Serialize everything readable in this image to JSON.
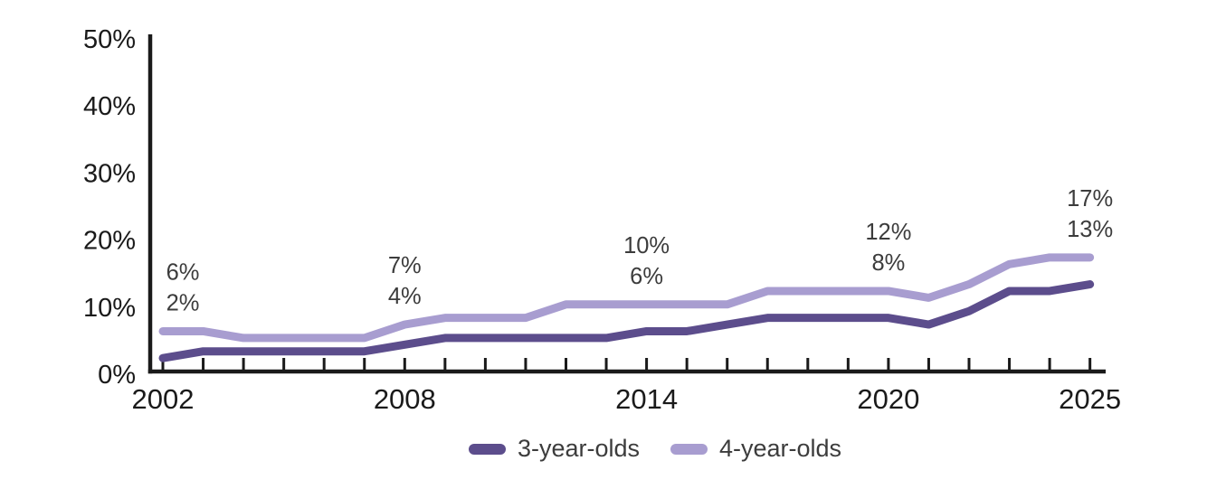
{
  "chart_data": {
    "type": "line",
    "x": [
      2002,
      2003,
      2004,
      2005,
      2006,
      2007,
      2008,
      2009,
      2010,
      2011,
      2012,
      2013,
      2014,
      2015,
      2016,
      2017,
      2018,
      2019,
      2020,
      2021,
      2022,
      2023,
      2024,
      2025
    ],
    "series": [
      {
        "name": "3-year-olds",
        "color": "#5C4D8C",
        "values": [
          2,
          3,
          3,
          3,
          3,
          3,
          4,
          5,
          5,
          5,
          5,
          5,
          6,
          6,
          7,
          8,
          8,
          8,
          8,
          7,
          9,
          12,
          12,
          13
        ]
      },
      {
        "name": "4-year-olds",
        "color": "#A89DD0",
        "values": [
          6,
          6,
          5,
          5,
          5,
          5,
          7,
          8,
          8,
          8,
          10,
          10,
          10,
          10,
          10,
          12,
          12,
          12,
          12,
          11,
          13,
          16,
          17,
          17
        ]
      }
    ],
    "ylim": [
      0,
      50
    ],
    "y_ticks": [
      {
        "value": 0,
        "label": "0%"
      },
      {
        "value": 10,
        "label": "10%"
      },
      {
        "value": 20,
        "label": "20%"
      },
      {
        "value": 30,
        "label": "30%"
      },
      {
        "value": 40,
        "label": "40%"
      },
      {
        "value": 50,
        "label": "50%"
      }
    ],
    "x_tick_labels": [
      {
        "value": 2002,
        "label": "2002"
      },
      {
        "value": 2008,
        "label": "2008"
      },
      {
        "value": 2014,
        "label": "2014"
      },
      {
        "value": 2020,
        "label": "2020"
      },
      {
        "value": 2025,
        "label": "2025"
      }
    ],
    "minor_x_ticks": "every year",
    "grid": false,
    "legend_position": "bottom-center",
    "callouts": [
      {
        "year": 2002,
        "top": "6%",
        "bottom": "2%",
        "top_series": "4-year-olds",
        "bottom_series": "3-year-olds",
        "dx": 22
      },
      {
        "year": 2008,
        "top": "7%",
        "bottom": "4%",
        "top_series": "4-year-olds",
        "bottom_series": "3-year-olds",
        "dx": 0
      },
      {
        "year": 2014,
        "top": "10%",
        "bottom": "6%",
        "top_series": "4-year-olds",
        "bottom_series": "3-year-olds",
        "dx": 0
      },
      {
        "year": 2020,
        "top": "12%",
        "bottom": "8%",
        "top_series": "4-year-olds",
        "bottom_series": "3-year-olds",
        "dx": 0
      },
      {
        "year": 2025,
        "top": "17%",
        "bottom": "13%",
        "top_series": "4-year-olds",
        "bottom_series": "3-year-olds",
        "dx": 0
      }
    ],
    "axis_color": "#1a1a1a",
    "callout_color": "#3c3c3c"
  }
}
